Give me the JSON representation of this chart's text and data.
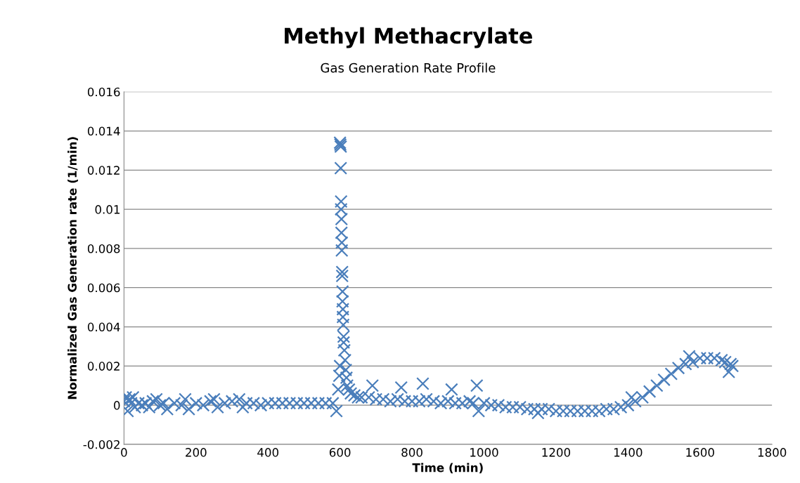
{
  "chart_data": {
    "type": "scatter",
    "title": "Methyl Methacrylate",
    "subtitle": "Gas Generation Rate Profile",
    "xlabel": "Time (min)",
    "ylabel": "Normalized Gas Generation rate (1/min)",
    "xlim": [
      0,
      1800
    ],
    "xticks": [
      0,
      200,
      400,
      600,
      800,
      1000,
      1200,
      1400,
      1600,
      1800
    ],
    "ylim": [
      -0.002,
      0.016
    ],
    "yticks": [
      -0.002,
      0,
      0.002,
      0.004,
      0.006,
      0.008,
      0.01,
      0.012,
      0.014,
      0.016
    ],
    "grid": "y",
    "marker": "cross",
    "legend": false,
    "series": [
      {
        "color": "#4a7ebb",
        "x": [
          0,
          5,
          10,
          15,
          20,
          25,
          30,
          40,
          50,
          60,
          70,
          80,
          90,
          100,
          110,
          120,
          140,
          160,
          170,
          180,
          200,
          220,
          240,
          250,
          260,
          280,
          300,
          320,
          330,
          340,
          360,
          380,
          400,
          420,
          440,
          460,
          480,
          500,
          520,
          540,
          560,
          580,
          590,
          595,
          598,
          600,
          600,
          601,
          602,
          602,
          603,
          603,
          604,
          604,
          605,
          605,
          606,
          606,
          607,
          607,
          608,
          608,
          609,
          610,
          610,
          612,
          614,
          616,
          618,
          620,
          625,
          630,
          640,
          650,
          660,
          680,
          690,
          700,
          720,
          740,
          760,
          770,
          780,
          800,
          820,
          830,
          840,
          860,
          880,
          900,
          910,
          920,
          940,
          960,
          970,
          980,
          985,
          1000,
          1020,
          1040,
          1060,
          1080,
          1100,
          1120,
          1140,
          1150,
          1160,
          1180,
          1200,
          1220,
          1240,
          1260,
          1280,
          1300,
          1320,
          1340,
          1360,
          1380,
          1400,
          1410,
          1420,
          1440,
          1460,
          1480,
          1500,
          1520,
          1540,
          1560,
          1570,
          1580,
          1600,
          1620,
          1640,
          1660,
          1670,
          1680,
          1685,
          1690
        ],
        "values": [
          0.0002,
          0.0004,
          -0.0003,
          0.0003,
          0.0001,
          0.0004,
          -0.0001,
          0.0001,
          0.0,
          0.0001,
          -0.0001,
          0.0002,
          0.0003,
          0.0,
          0.0001,
          -0.0002,
          0.0001,
          0.0,
          0.0003,
          -0.0002,
          0.0001,
          0.0,
          0.0002,
          0.0003,
          -0.0001,
          0.0001,
          0.0002,
          0.0003,
          -0.0001,
          0.0001,
          0.0001,
          0.0,
          0.0001,
          0.0001,
          0.0001,
          0.0001,
          0.0001,
          0.0001,
          0.0001,
          0.0001,
          0.0001,
          0.0001,
          -0.0003,
          0.0008,
          0.0015,
          0.002,
          0.0134,
          0.0133,
          0.0132,
          0.0121,
          0.0104,
          0.01,
          0.0095,
          0.0088,
          0.0083,
          0.0079,
          0.0068,
          0.0066,
          0.0058,
          0.0053,
          0.0049,
          0.0045,
          0.0041,
          0.0035,
          0.0032,
          0.0028,
          0.0023,
          0.0018,
          0.0014,
          0.001,
          0.0008,
          0.0006,
          0.0005,
          0.0004,
          0.0004,
          0.0004,
          0.001,
          0.0003,
          0.0003,
          0.0002,
          0.0003,
          0.0009,
          0.0002,
          0.0002,
          0.0002,
          0.0011,
          0.0003,
          0.0002,
          0.0001,
          0.0002,
          0.0008,
          0.0001,
          0.0001,
          0.0002,
          0.0001,
          0.001,
          -0.0003,
          0.0001,
          0.0,
          0.0,
          -0.0001,
          -0.0001,
          -0.0001,
          -0.0002,
          -0.0002,
          -0.0004,
          -0.0002,
          -0.0002,
          -0.0003,
          -0.0003,
          -0.0003,
          -0.0003,
          -0.0003,
          -0.0003,
          -0.0003,
          -0.0002,
          -0.0002,
          -0.0001,
          0.0,
          0.0004,
          0.0002,
          0.0004,
          0.0007,
          0.001,
          0.0013,
          0.0016,
          0.0019,
          0.0021,
          0.0025,
          0.0022,
          0.0024,
          0.0024,
          0.0024,
          0.0023,
          0.0022,
          0.0017,
          0.0021,
          0.002
        ]
      }
    ]
  }
}
